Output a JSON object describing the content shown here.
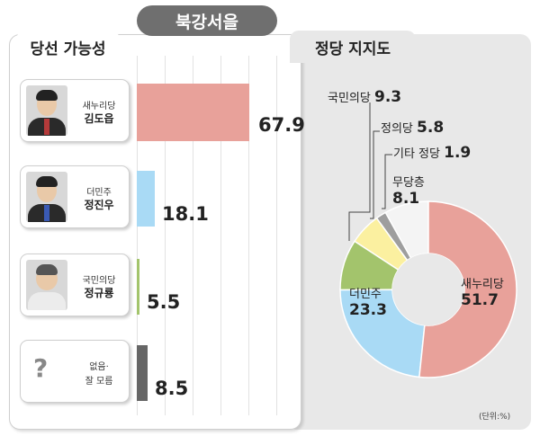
{
  "region_title": "북강서을",
  "left_title": "당선 가능성",
  "right_title": "정당 지지도",
  "unit_note": "(단위:%)",
  "colors": {
    "saenuri": "#e8a19a",
    "deominju": "#a9daf5",
    "gukmin": "#a3c46c",
    "jeongui": "#fbf0a0",
    "gita": "#9e9e9e",
    "mudang": "#f4f4f4",
    "no_answer": "#666666"
  },
  "chart_data": [
    {
      "type": "bar",
      "title": "당선 가능성",
      "orientation": "horizontal",
      "categories": [
        "새누리당 김도읍",
        "더민주 정진우",
        "국민의당 정규룡",
        "없음·잘 모름"
      ],
      "values": [
        67.9,
        18.1,
        5.5,
        8.5
      ],
      "xlim": [
        0,
        100
      ],
      "grid": true
    },
    {
      "type": "pie",
      "title": "정당 지지도",
      "style": "donut",
      "slices": [
        {
          "label": "새누리당",
          "value": 51.7
        },
        {
          "label": "더민주",
          "value": 23.3
        },
        {
          "label": "국민의당",
          "value": 9.3
        },
        {
          "label": "정의당",
          "value": 5.8
        },
        {
          "label": "기타 정당",
          "value": 1.9
        },
        {
          "label": "무당층",
          "value": 8.1
        }
      ]
    }
  ],
  "candidates": [
    {
      "party": "새누리당",
      "name": "김도읍",
      "value_label": "67.9"
    },
    {
      "party": "더민주",
      "name": "정진우",
      "value_label": "18.1"
    },
    {
      "party": "국민의당",
      "name": "정규룡",
      "value_label": "5.5"
    },
    {
      "line1": "없음·",
      "line2": "잘 모름",
      "value_label": "8.5"
    }
  ],
  "pie_labels": {
    "saenuri": {
      "name": "새누리당",
      "value": "51.7"
    },
    "deominju": {
      "name": "더민주",
      "value": "23.3"
    },
    "gukmin": {
      "name": "국민의당",
      "value": "9.3"
    },
    "jeongui": {
      "name": "정의당",
      "value": "5.8"
    },
    "gita": {
      "name": "기타 정당",
      "value": "1.9"
    },
    "mudang": {
      "name": "무당층",
      "value": "8.1"
    }
  }
}
